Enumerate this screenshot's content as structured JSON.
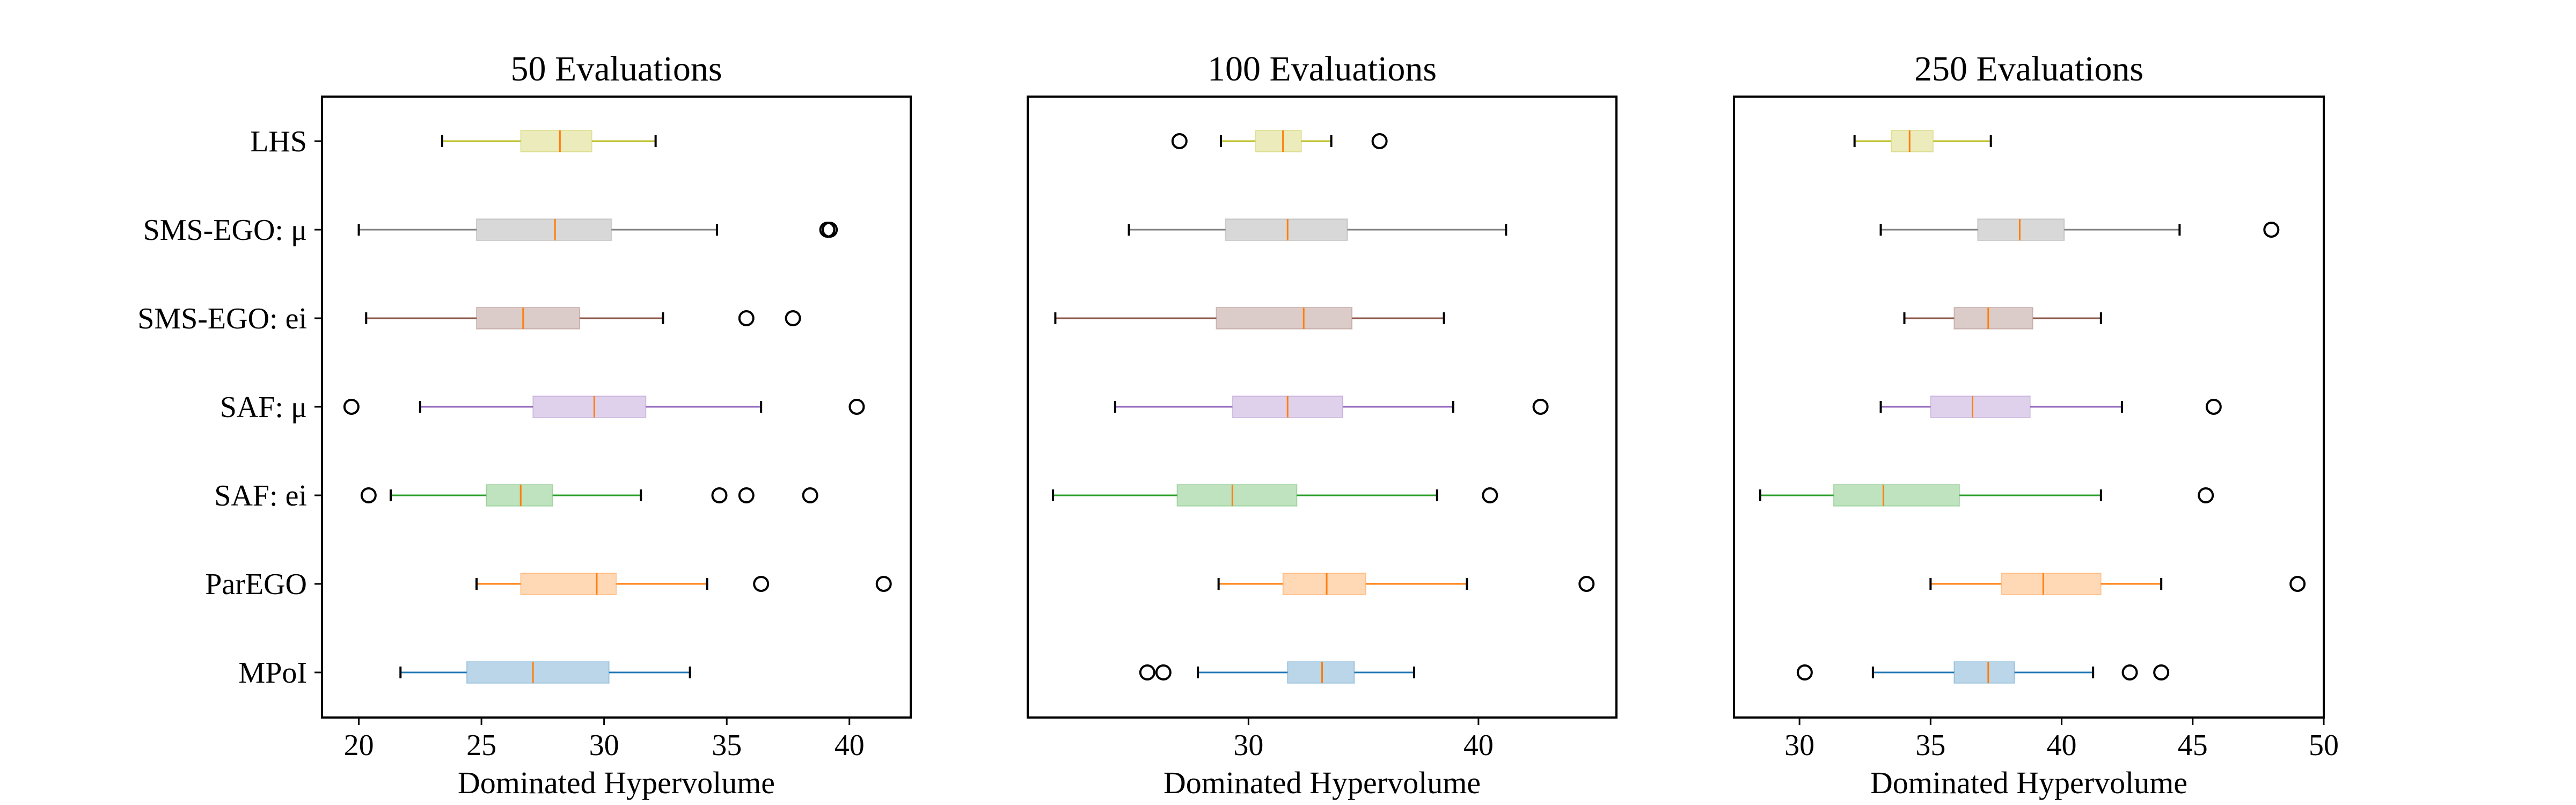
{
  "chart_data": [
    {
      "type": "boxplot",
      "orientation": "horizontal",
      "title": "50 Evaluations",
      "xlabel": "Dominated Hypervolume",
      "xlim": [
        18.5,
        42.5
      ],
      "xticks": [
        20,
        25,
        30,
        35,
        40
      ],
      "show_y_labels": true,
      "categories": [
        "LHS",
        "SMS-EGO: μ",
        "SMS-EGO: ei",
        "SAF: μ",
        "SAF: ei",
        "ParEGO",
        "MPoI"
      ],
      "series": [
        {
          "whisker_low": 23.4,
          "q1": 26.6,
          "median": 28.2,
          "q3": 29.5,
          "whisker_high": 32.1,
          "outliers": []
        },
        {
          "whisker_low": 20.0,
          "q1": 24.8,
          "median": 28.0,
          "q3": 30.3,
          "whisker_high": 34.6,
          "outliers": [
            39.1,
            39.2
          ]
        },
        {
          "whisker_low": 20.3,
          "q1": 24.8,
          "median": 26.7,
          "q3": 29.0,
          "whisker_high": 32.4,
          "outliers": [
            35.8,
            37.7
          ]
        },
        {
          "whisker_low": 22.5,
          "q1": 27.1,
          "median": 29.6,
          "q3": 31.7,
          "whisker_high": 36.4,
          "outliers": [
            19.7,
            40.3
          ]
        },
        {
          "whisker_low": 21.3,
          "q1": 25.2,
          "median": 26.6,
          "q3": 27.9,
          "whisker_high": 31.5,
          "outliers": [
            20.4,
            34.7,
            35.8,
            38.4
          ]
        },
        {
          "whisker_low": 24.8,
          "q1": 26.6,
          "median": 29.7,
          "q3": 30.5,
          "whisker_high": 34.2,
          "outliers": [
            36.4,
            41.4
          ]
        },
        {
          "whisker_low": 21.7,
          "q1": 24.4,
          "median": 27.1,
          "q3": 30.2,
          "whisker_high": 33.5,
          "outliers": []
        }
      ]
    },
    {
      "type": "boxplot",
      "orientation": "horizontal",
      "title": "100 Evaluations",
      "xlabel": "Dominated Hypervolume",
      "xlim": [
        20.4,
        46.0
      ],
      "xticks": [
        30,
        40
      ],
      "show_y_labels": false,
      "categories": [
        "LHS",
        "SMS-EGO: μ",
        "SMS-EGO: ei",
        "SAF: μ",
        "SAF: ei",
        "ParEGO",
        "MPoI"
      ],
      "series": [
        {
          "whisker_low": 28.8,
          "q1": 30.3,
          "median": 31.5,
          "q3": 32.3,
          "whisker_high": 33.6,
          "outliers": [
            27.0,
            35.7
          ]
        },
        {
          "whisker_low": 24.8,
          "q1": 29.0,
          "median": 31.7,
          "q3": 34.3,
          "whisker_high": 41.2,
          "outliers": []
        },
        {
          "whisker_low": 21.6,
          "q1": 28.6,
          "median": 32.4,
          "q3": 34.5,
          "whisker_high": 38.5,
          "outliers": []
        },
        {
          "whisker_low": 24.2,
          "q1": 29.3,
          "median": 31.7,
          "q3": 34.1,
          "whisker_high": 38.9,
          "outliers": [
            42.7
          ]
        },
        {
          "whisker_low": 21.5,
          "q1": 26.9,
          "median": 29.3,
          "q3": 32.1,
          "whisker_high": 38.2,
          "outliers": [
            40.5
          ]
        },
        {
          "whisker_low": 28.7,
          "q1": 31.5,
          "median": 33.4,
          "q3": 35.1,
          "whisker_high": 39.5,
          "outliers": [
            44.7
          ]
        },
        {
          "whisker_low": 27.8,
          "q1": 31.7,
          "median": 33.2,
          "q3": 34.6,
          "whisker_high": 37.2,
          "outliers": [
            25.6,
            26.3
          ]
        }
      ]
    },
    {
      "type": "boxplot",
      "orientation": "horizontal",
      "title": "250 Evaluations",
      "xlabel": "Dominated Hypervolume",
      "xlim": [
        27.5,
        50.0
      ],
      "xticks": [
        30,
        35,
        40,
        45,
        50
      ],
      "show_y_labels": false,
      "categories": [
        "LHS",
        "SMS-EGO: μ",
        "SMS-EGO: ei",
        "SAF: μ",
        "SAF: ei",
        "ParEGO",
        "MPoI"
      ],
      "series": [
        {
          "whisker_low": 32.1,
          "q1": 33.5,
          "median": 34.2,
          "q3": 35.1,
          "whisker_high": 37.3,
          "outliers": []
        },
        {
          "whisker_low": 33.1,
          "q1": 36.8,
          "median": 38.4,
          "q3": 40.1,
          "whisker_high": 44.5,
          "outliers": [
            48.0
          ]
        },
        {
          "whisker_low": 34.0,
          "q1": 35.9,
          "median": 37.2,
          "q3": 38.9,
          "whisker_high": 41.5,
          "outliers": []
        },
        {
          "whisker_low": 33.1,
          "q1": 35.0,
          "median": 36.6,
          "q3": 38.8,
          "whisker_high": 42.3,
          "outliers": [
            45.8
          ]
        },
        {
          "whisker_low": 28.5,
          "q1": 31.3,
          "median": 33.2,
          "q3": 36.1,
          "whisker_high": 41.5,
          "outliers": [
            45.5
          ]
        },
        {
          "whisker_low": 35.0,
          "q1": 37.7,
          "median": 39.3,
          "q3": 41.5,
          "whisker_high": 43.8,
          "outliers": [
            49.0
          ]
        },
        {
          "whisker_low": 32.8,
          "q1": 35.9,
          "median": 37.2,
          "q3": 38.2,
          "whisker_high": 41.2,
          "outliers": [
            30.2,
            42.6,
            43.8
          ]
        }
      ]
    }
  ],
  "colors": {
    "LHS": "#bcbd22",
    "SMS-EGO: μ": "#7f7f7f",
    "SMS-EGO: ei": "#8c564b",
    "SAF: μ": "#9467bd",
    "SAF: ei": "#2ca02c",
    "ParEGO": "#ff7f0e",
    "MPoI": "#1f77b4",
    "median": "#ff7f0e"
  }
}
